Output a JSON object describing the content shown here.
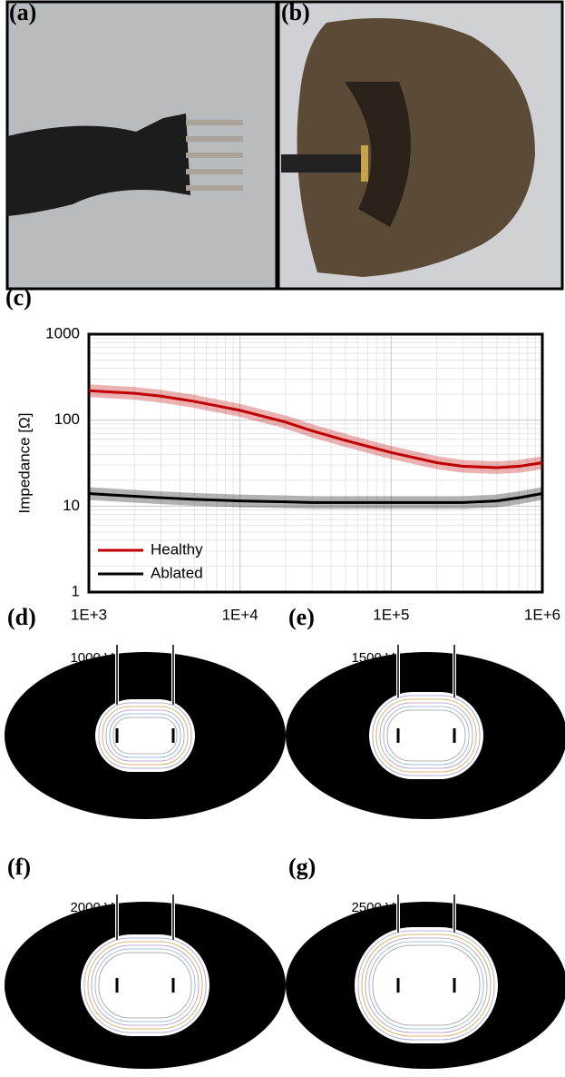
{
  "photos": [
    {
      "label": "(a)"
    },
    {
      "label": "(b)"
    }
  ],
  "chart_data": {
    "type": "line",
    "panel_label": "(c)",
    "y_label": "Impedance [Ω]",
    "x": [
      1000,
      2000,
      3000,
      5000,
      10000,
      20000,
      30000,
      50000,
      100000,
      200000,
      300000,
      500000,
      700000,
      1000000
    ],
    "xlim": [
      1000,
      1000000
    ],
    "xticks": [
      {
        "value": 1000,
        "label": "1E+3"
      },
      {
        "value": 10000,
        "label": "1E+4"
      },
      {
        "value": 100000,
        "label": "1E+5"
      },
      {
        "value": 1000000,
        "label": "1E+6"
      }
    ],
    "ylim": [
      1,
      1000
    ],
    "yticks": [
      1,
      10,
      100,
      1000
    ],
    "log_x": true,
    "log_y": true,
    "grid": true,
    "legend": "lower left",
    "series": [
      {
        "name": "Healthy",
        "color": "#c00000",
        "values": [
          220,
          205,
          190,
          165,
          130,
          95,
          75,
          58,
          42,
          32,
          29,
          28,
          29,
          32
        ]
      },
      {
        "name": "Ablated",
        "color": "#000000",
        "values": [
          14,
          13,
          12.5,
          12,
          11.5,
          11.2,
          11,
          11,
          11,
          11,
          11,
          11.5,
          12.5,
          14
        ]
      }
    ]
  },
  "panels": [
    {
      "label": "(d)",
      "voltage": "1000 V"
    },
    {
      "label": "(e)",
      "voltage": "1500 V"
    },
    {
      "label": "(f)",
      "voltage": "2000 V"
    },
    {
      "label": "(g)",
      "voltage": "2500 V"
    }
  ]
}
